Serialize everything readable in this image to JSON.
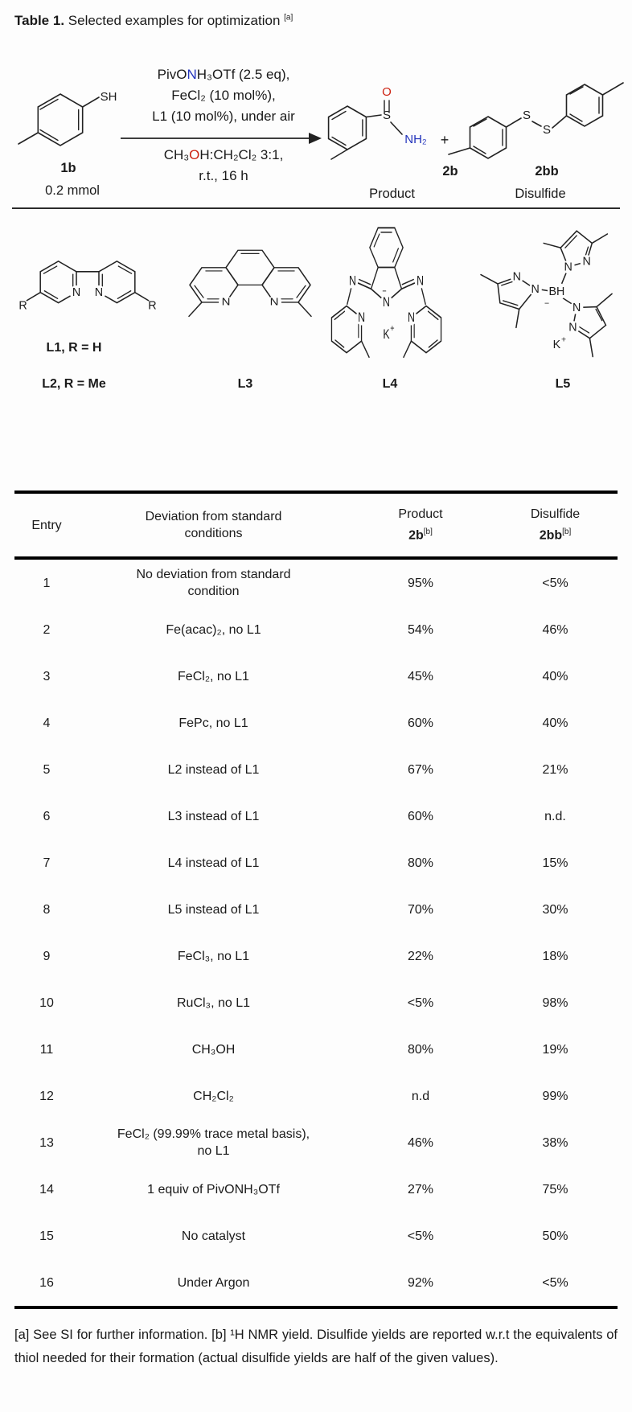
{
  "title": {
    "bold": "Table 1.",
    "text": " Selected examples for optimization ",
    "marker": "[a]"
  },
  "colors": {
    "heteroatom_blue": "#2233bb",
    "oxygen_red": "#cc2211"
  },
  "scheme": {
    "reactant": {
      "id": "1b",
      "amount": "0.2 mmol",
      "atoms": {
        "sh": "SH"
      }
    },
    "conditions": {
      "line1": {
        "pre": "PivO",
        "n": "N",
        "post": "H₃OTf (2.5 eq),"
      },
      "line2": "FeCl₂ (10 mol%),",
      "line3": "L1 (10 mol%), under air",
      "line4": {
        "pre": "CH₃",
        "o": "O",
        "post": "H:CH₂Cl₂ 3:1,"
      },
      "line5": "r.t., 16 h"
    },
    "plus": "+",
    "product": {
      "id": "2b",
      "caption": "Product",
      "atoms": {
        "s": "S",
        "o": "O",
        "nh2": "NH₂"
      }
    },
    "disulfide": {
      "id": "2bb",
      "caption": "Disulfide",
      "atoms": {
        "s1": "S",
        "s2": "S"
      }
    }
  },
  "ligands": {
    "l1": {
      "label": "L1, R = H",
      "label2": "L2, R = Me",
      "atoms": {
        "n1": "N",
        "n2": "N",
        "r1": "R",
        "r2": "R"
      }
    },
    "l3": {
      "label": "L3",
      "atoms": {
        "n1": "N",
        "n2": "N"
      }
    },
    "l4": {
      "label": "L4",
      "atoms": {
        "n_left": "N",
        "n_right": "N",
        "n_center": "N",
        "minus": "−",
        "n_py_left": "N",
        "n_py_right": "N",
        "k": "K",
        "kplus": "+"
      }
    },
    "l5": {
      "label": "L5",
      "atoms": {
        "bh": "BH",
        "minus": "−",
        "k": "K",
        "kplus": "+",
        "n1": "N",
        "n2": "N",
        "n3": "N",
        "n4": "N",
        "n5": "N",
        "n6": "N"
      }
    }
  },
  "table": {
    "headers": {
      "entry": "Entry",
      "deviation": "Deviation from standard conditions",
      "product_line1": "Product",
      "product_bold": "2b",
      "product_sup": "[b]",
      "disulfide_line1": "Disulfide",
      "disulfide_bold": "2bb",
      "disulfide_sup": "[b]"
    },
    "rows": [
      {
        "entry": "1",
        "deviation": "No deviation from standard condition",
        "product": "95%",
        "disulfide": "<5%"
      },
      {
        "entry": "2",
        "deviation": "Fe(acac)₂, no L1",
        "product": "54%",
        "disulfide": "46%"
      },
      {
        "entry": "3",
        "deviation": "FeCl₂, no L1",
        "product": "45%",
        "disulfide": "40%"
      },
      {
        "entry": "4",
        "deviation": "FePc, no L1",
        "product": "60%",
        "disulfide": "40%"
      },
      {
        "entry": "5",
        "deviation": "L2 instead of L1",
        "product": "67%",
        "disulfide": "21%"
      },
      {
        "entry": "6",
        "deviation": "L3 instead of L1",
        "product": "60%",
        "disulfide": "n.d."
      },
      {
        "entry": "7",
        "deviation": "L4 instead of L1",
        "product": "80%",
        "disulfide": "15%"
      },
      {
        "entry": "8",
        "deviation": "L5 instead of L1",
        "product": "70%",
        "disulfide": "30%"
      },
      {
        "entry": "9",
        "deviation": "FeCl₃, no L1",
        "product": "22%",
        "disulfide": "18%"
      },
      {
        "entry": "10",
        "deviation": "RuCl₃, no L1",
        "product": "<5%",
        "disulfide": "98%"
      },
      {
        "entry": "11",
        "deviation": "CH₃OH",
        "product": "80%",
        "disulfide": "19%"
      },
      {
        "entry": "12",
        "deviation": "CH₂Cl₂",
        "product": "n.d",
        "disulfide": "99%"
      },
      {
        "entry": "13",
        "deviation": "FeCl₂ (99.99% trace metal basis), no L1",
        "product": "46%",
        "disulfide": "38%"
      },
      {
        "entry": "14",
        "deviation": "1 equiv of PivONH₃OTf",
        "product": "27%",
        "disulfide": "75%"
      },
      {
        "entry": "15",
        "deviation": "No catalyst",
        "product": "<5%",
        "disulfide": "50%"
      },
      {
        "entry": "16",
        "deviation": "Under Argon",
        "product": "92%",
        "disulfide": "<5%"
      }
    ]
  },
  "footnote": "[a] See SI for further information. [b] ¹H NMR yield. Disulfide yields are reported w.r.t the equivalents of thiol needed for their formation (actual disulfide yields are half of the given values)."
}
